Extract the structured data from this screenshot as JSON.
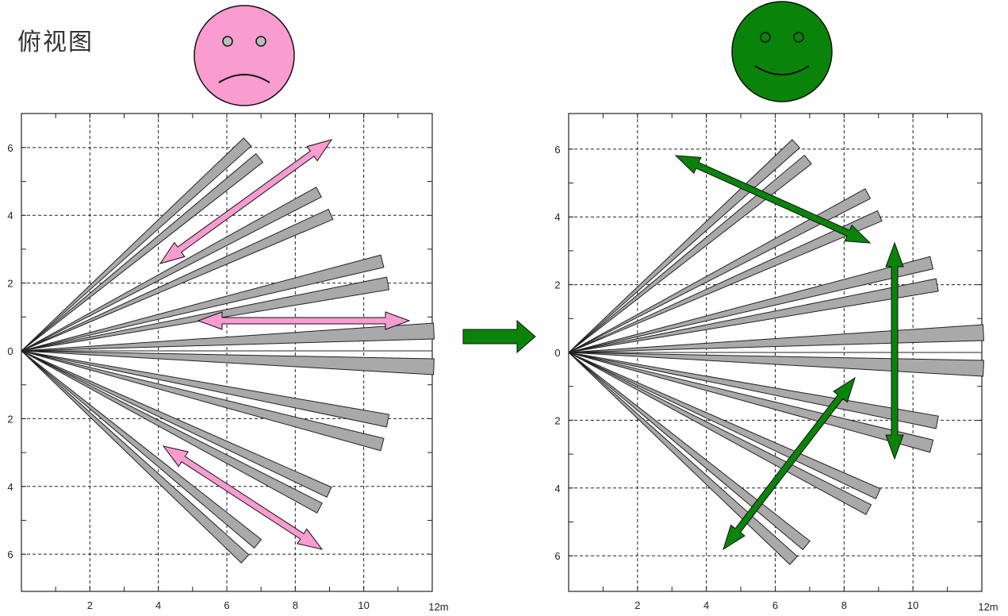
{
  "title": "俯视图",
  "face_colors": {
    "sad": "#F99CD0",
    "happy": "#0A830A"
  },
  "arrow_colors": {
    "pink": "#F99CD0",
    "green": "#0A830A",
    "beam": "#A9A9A9"
  },
  "axes": {
    "x_ticks": [
      "2",
      "4",
      "6",
      "8",
      "10"
    ],
    "x_unit_label": "12m",
    "y_ticks": [
      "6",
      "4",
      "2",
      "0",
      "2",
      "4",
      "6"
    ]
  },
  "panels": [
    {
      "id": "left",
      "face": "sad",
      "arrow_color": "pink"
    },
    {
      "id": "right",
      "face": "happy",
      "arrow_color": "green"
    }
  ]
}
